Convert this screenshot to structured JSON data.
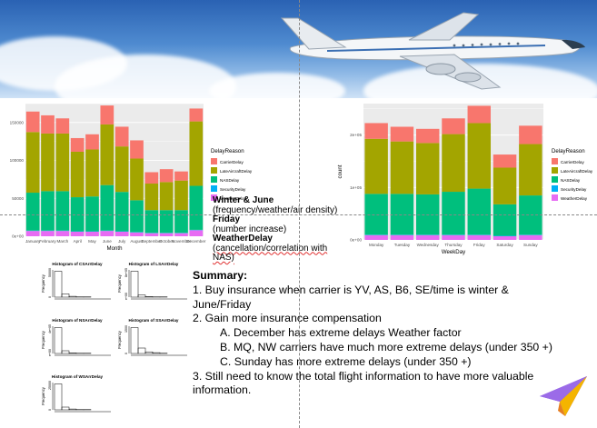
{
  "chart_data": [
    {
      "type": "bar",
      "stacked": true,
      "xlabel": "Month",
      "ylabel": "count",
      "legend_title": "DelayReason",
      "legend_position": "right",
      "categories": [
        "January",
        "February",
        "March",
        "April",
        "May",
        "June",
        "July",
        "August",
        "September",
        "October",
        "November",
        "December"
      ],
      "yticks": [
        "0e+00",
        "50000",
        "100000",
        "150000"
      ],
      "ylim": [
        0,
        175000
      ],
      "series": [
        {
          "name": "CarrierDelay",
          "color": "#F8766D",
          "values": [
            27000,
            24000,
            20000,
            18000,
            20000,
            25000,
            26000,
            24000,
            15000,
            17000,
            12000,
            17000
          ]
        },
        {
          "name": "LateAircraftDelay",
          "color": "#A3A500",
          "values": [
            80000,
            76000,
            76000,
            60000,
            62000,
            80000,
            60000,
            55000,
            35000,
            37000,
            39000,
            85000
          ]
        },
        {
          "name": "NASDelay",
          "color": "#00BF7D",
          "values": [
            50000,
            52000,
            52000,
            45000,
            46000,
            60000,
            52000,
            42000,
            30000,
            30000,
            30000,
            58000
          ]
        },
        {
          "name": "SecurityDelay",
          "color": "#00B0F6",
          "values": [
            500,
            500,
            500,
            500,
            500,
            500,
            500,
            500,
            500,
            500,
            500,
            500
          ]
        },
        {
          "name": "WeatherDelay",
          "color": "#E76BF3",
          "values": [
            7000,
            7000,
            7000,
            6000,
            6000,
            7000,
            6000,
            5000,
            4000,
            4000,
            4000,
            8000
          ]
        }
      ]
    },
    {
      "type": "bar",
      "stacked": true,
      "xlabel": "WeekDay",
      "ylabel": "count",
      "legend_title": "DelayReason",
      "legend_position": "right",
      "categories": [
        "Monday",
        "Tuesday",
        "Wednesday",
        "Thursday",
        "Friday",
        "Saturday",
        "Sunday"
      ],
      "yticks": [
        "0e+00",
        "1e+05",
        "2e+05"
      ],
      "ylim": [
        0,
        260000
      ],
      "series": [
        {
          "name": "CarrierDelay",
          "color": "#F8766D",
          "values": [
            30000,
            28000,
            27000,
            30000,
            33000,
            25000,
            35000
          ]
        },
        {
          "name": "LateAircraftDelay",
          "color": "#A3A500",
          "values": [
            105000,
            100000,
            98000,
            110000,
            125000,
            70000,
            98000
          ]
        },
        {
          "name": "NASDelay",
          "color": "#00BF7D",
          "values": [
            78000,
            78000,
            77000,
            82000,
            88000,
            60000,
            75000
          ]
        },
        {
          "name": "SecurityDelay",
          "color": "#00B0F6",
          "values": [
            800,
            800,
            800,
            800,
            800,
            800,
            800
          ]
        },
        {
          "name": "WeatherDelay",
          "color": "#E76BF3",
          "values": [
            9000,
            9000,
            9000,
            9000,
            9000,
            7000,
            9000
          ]
        }
      ]
    }
  ],
  "histograms": [
    {
      "title": "Histogram of CSArrDelay",
      "xlabel": "CSArrDelay",
      "ylabel": "Frequency",
      "yticks": [
        "0",
        "50000"
      ],
      "xticks": [
        "0",
        "500",
        "1000",
        "1500"
      ],
      "values": [
        0.95,
        0.12,
        0.03,
        0.01,
        0.01
      ]
    },
    {
      "title": "Histogram of LSArrDelay",
      "xlabel": "LSArrDelay",
      "ylabel": "Frequency",
      "yticks": [
        "0e+00",
        "8e+05"
      ],
      "xticks": [
        "0",
        "500",
        "1000",
        "1500"
      ],
      "values": [
        0.95,
        0.08,
        0.02,
        0.01,
        0.01
      ]
    },
    {
      "title": "Histogram of NSArrDelay",
      "xlabel": "NSArrDelay",
      "ylabel": "Frequency",
      "yticks": [
        "0e+00",
        "4e+05"
      ],
      "xticks": [
        "0",
        "500",
        "1000",
        "1500"
      ],
      "values": [
        0.95,
        0.1,
        0.02,
        0.01,
        0.01
      ]
    },
    {
      "title": "Histogram of SSArrDelay",
      "xlabel": "SSArrDelay",
      "ylabel": "Frequency",
      "yticks": [
        "0",
        "1500"
      ],
      "xticks": [
        "0",
        "100",
        "200",
        "300"
      ],
      "values": [
        0.95,
        0.2,
        0.06,
        0.03,
        0.01
      ]
    },
    {
      "title": "Histogram of WSArrDelay",
      "xlabel": "WSArrDelay",
      "ylabel": "Frequency",
      "yticks": [
        "0",
        "25000"
      ],
      "xticks": [
        "0",
        "500",
        "1000",
        "1500"
      ],
      "values": [
        0.95,
        0.1,
        0.03,
        0.01,
        0.01
      ]
    }
  ],
  "annotations": {
    "line1": "Winter & June",
    "line2": "(frequency/weather/air density)",
    "line3": "Friday",
    "line4": "(number increase)",
    "line5": "WeatherDelay",
    "line6": "(cancellation/correlation with NAS)"
  },
  "summary": {
    "title": "Summary:",
    "item1": "1. Buy insurance when carrier is YV, AS, B6, SE/time is winter & June/Friday",
    "item2": "2. Gain more insurance compensation",
    "item2a": "A. December has extreme delays Weather factor",
    "item2b": "B. MQ, NW carriers have much more extreme delays (under 350 +)",
    "item2c": "C. Sunday has more extreme delays (under 350 +)",
    "item3": "3. Still need to know the total flight information to have more valuable information."
  },
  "icons": {
    "plane": "airplane-icon",
    "logo": "paper-plane-icon"
  }
}
